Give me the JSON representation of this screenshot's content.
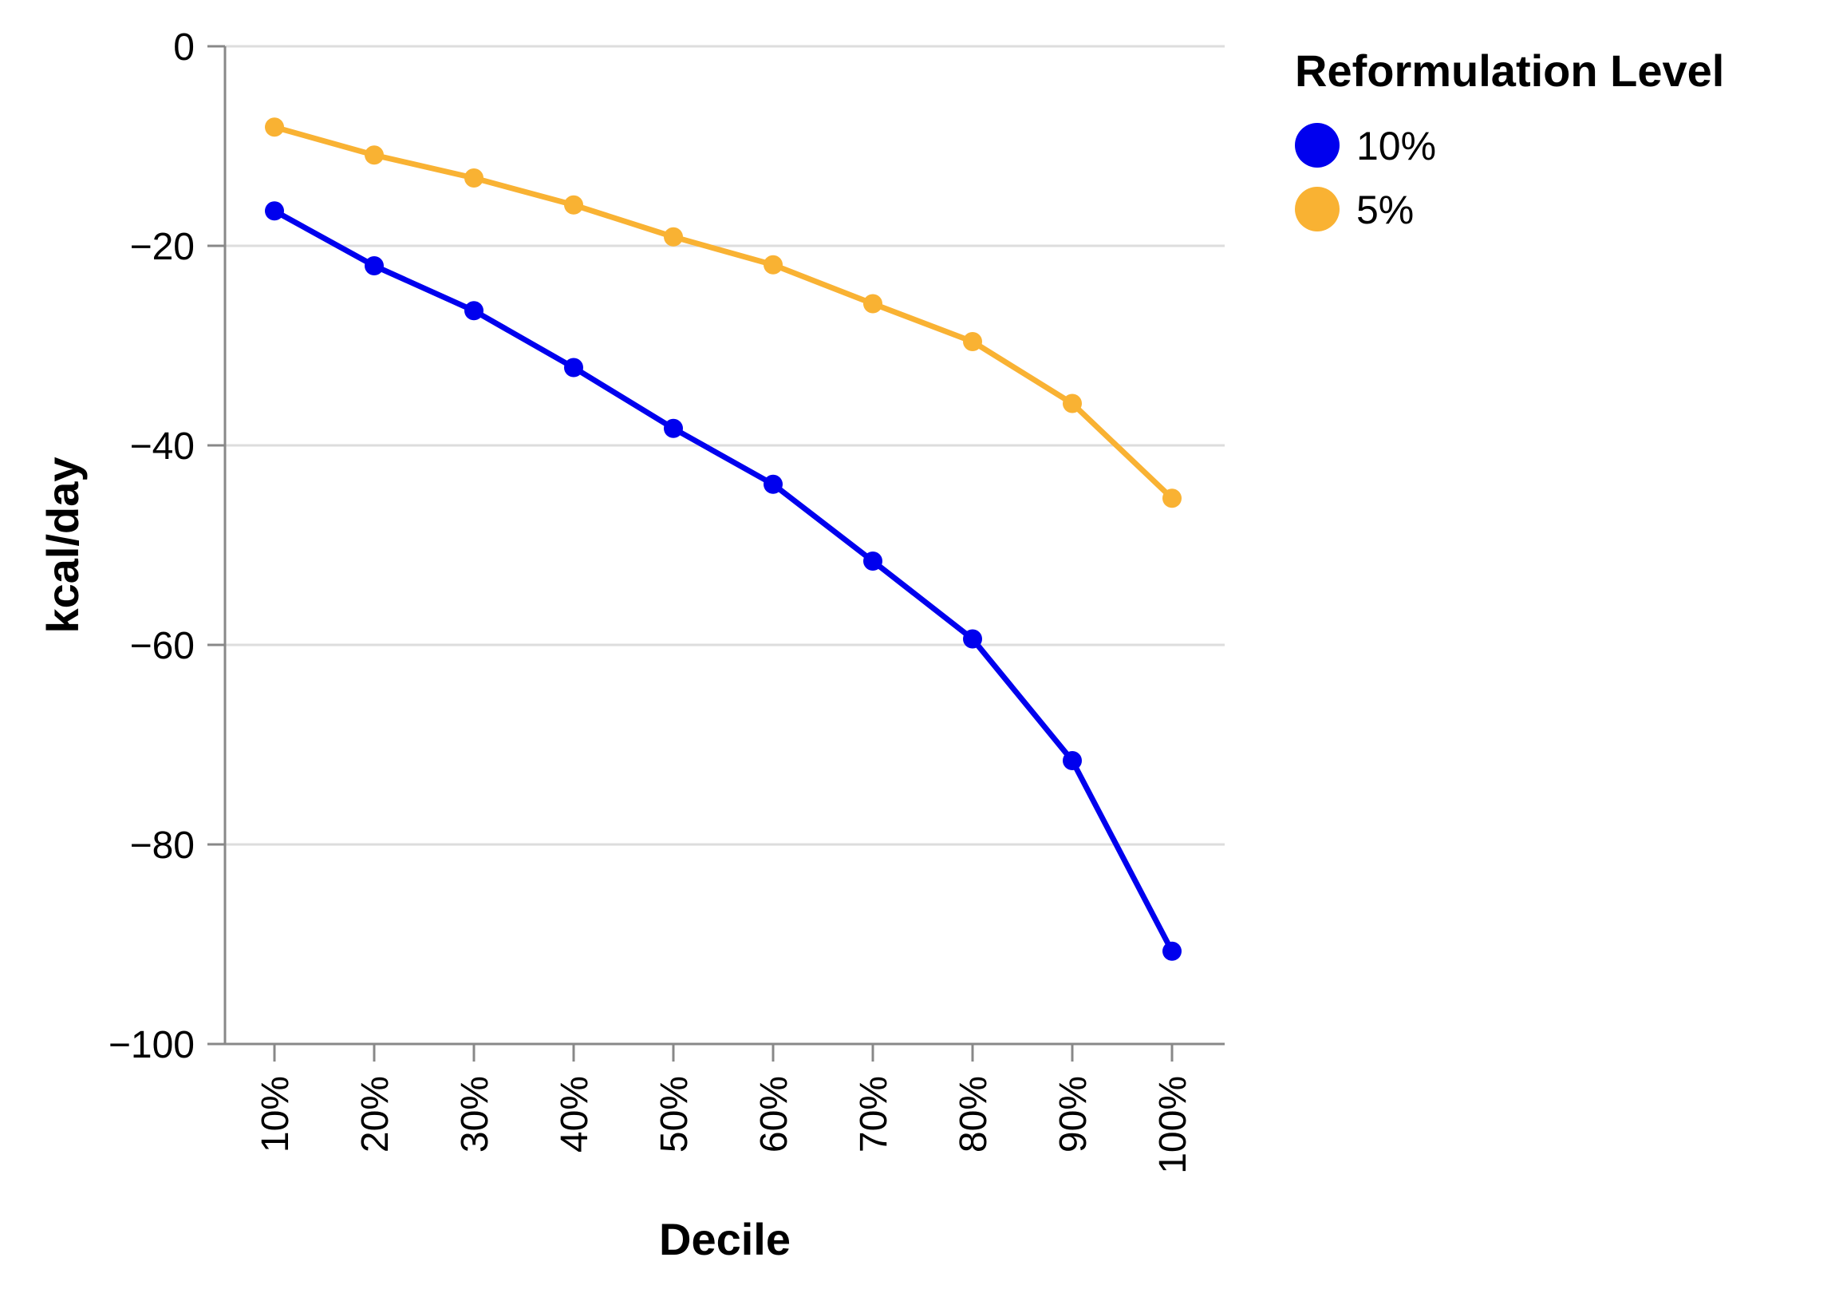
{
  "chart_data": {
    "type": "line",
    "xlabel": "Decile",
    "ylabel": "kcal/day",
    "categories": [
      "10%",
      "20%",
      "30%",
      "40%",
      "50%",
      "60%",
      "70%",
      "80%",
      "90%",
      "100%"
    ],
    "ylim": [
      -100,
      0
    ],
    "yticks": [
      0,
      -20,
      -40,
      -60,
      -80,
      -100
    ],
    "ytick_labels": [
      "0",
      "−20",
      "−40",
      "−60",
      "−80",
      "−100"
    ],
    "grid": true,
    "legend": {
      "title": "Reformulation Level",
      "placement": "top-right"
    },
    "series": [
      {
        "name": "10%",
        "color": "#0000ee",
        "values": [
          -16.5,
          -22.0,
          -26.5,
          -32.2,
          -38.3,
          -43.9,
          -51.6,
          -59.4,
          -71.6,
          -90.7
        ]
      },
      {
        "name": "5%",
        "color": "#f9b233",
        "values": [
          -8.1,
          -10.9,
          -13.2,
          -15.9,
          -19.1,
          -21.9,
          -25.8,
          -29.6,
          -35.8,
          -45.3
        ]
      }
    ]
  }
}
